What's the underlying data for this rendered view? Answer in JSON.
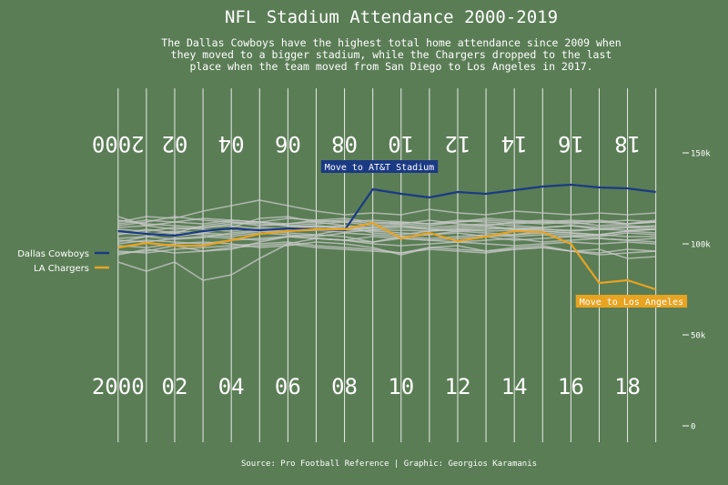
{
  "title": "NFL Stadium Attendance 2000-2019",
  "subtitle": "The Dallas Cowboys have the highest total home attendance since 2009 when they moved to a bigger stadium, while the Chargers dropped to the last place when the team moved from San Diego to Los Angeles in 2017.",
  "caption": "Source: Pro Football Reference | Graphic: Georgios Karamanis",
  "colors": {
    "background": "#5a7d55",
    "cowboys": "#1b3a84",
    "chargers": "#e8a321",
    "other_teams": "#c9c9c9",
    "yard_lines": "#ffffff"
  },
  "chart_data": {
    "type": "line",
    "x": [
      2000,
      2001,
      2002,
      2003,
      2004,
      2005,
      2006,
      2007,
      2008,
      2009,
      2010,
      2011,
      2012,
      2013,
      2014,
      2015,
      2016,
      2017,
      2018,
      2019
    ],
    "xlim": [
      1999.3,
      2019.3
    ],
    "ylim": [
      0,
      150000
    ],
    "yticks": [
      {
        "value": 0,
        "label": "0"
      },
      {
        "value": 50000,
        "label": "50k"
      },
      {
        "value": 100000,
        "label": "100k"
      },
      {
        "value": 150000,
        "label": "150k"
      }
    ],
    "field_numbers": [
      {
        "year": 2000,
        "label": "2000"
      },
      {
        "year": 2002,
        "label": "02"
      },
      {
        "year": 2004,
        "label": "04"
      },
      {
        "year": 2006,
        "label": "06"
      },
      {
        "year": 2008,
        "label": "08"
      },
      {
        "year": 2010,
        "label": "10"
      },
      {
        "year": 2012,
        "label": "12"
      },
      {
        "year": 2014,
        "label": "14"
      },
      {
        "year": 2016,
        "label": "16"
      },
      {
        "year": 2018,
        "label": "18"
      }
    ],
    "series": [
      {
        "name": "Dallas Cowboys",
        "role": "highlight",
        "color": "#1b3a84",
        "values": [
          107000,
          105500,
          104500,
          107000,
          108500,
          107500,
          108500,
          108000,
          107500,
          130000,
          127500,
          125500,
          128500,
          127500,
          129500,
          131500,
          132500,
          131000,
          130500,
          128500
        ]
      },
      {
        "name": "LA Chargers",
        "role": "highlight",
        "color": "#e8a321",
        "values": [
          98000,
          100500,
          99000,
          99000,
          102000,
          105500,
          107000,
          108000,
          108000,
          111500,
          103000,
          106000,
          101500,
          104000,
          107000,
          106500,
          100000,
          78500,
          80000,
          75000
        ]
      },
      {
        "role": "background",
        "values": [
          101000,
          104000,
          102500,
          103500,
          106000,
          107500,
          107000,
          107500,
          106500,
          107500,
          107500,
          107000,
          108000,
          107000,
          107500,
          108000,
          107500,
          108000,
          107500,
          108000
        ]
      },
      {
        "role": "background",
        "values": [
          112000,
          115000,
          114000,
          118000,
          121000,
          124000,
          121000,
          118000,
          116000,
          117000,
          116000,
          119000,
          117000,
          116000,
          118000,
          117000,
          116000,
          117000,
          116000,
          117000
        ]
      },
      {
        "role": "background",
        "values": [
          95000,
          96000,
          99000,
          96000,
          97000,
          101000,
          104000,
          105000,
          104000,
          101000,
          104000,
          103000,
          104000,
          105000,
          104000,
          105000,
          104000,
          105000,
          104000,
          104000
        ]
      },
      {
        "role": "background",
        "values": [
          115000,
          110000,
          112000,
          114000,
          113000,
          112000,
          114000,
          113000,
          112000,
          113000,
          112000,
          111000,
          112000,
          113000,
          112000,
          111000,
          112000,
          113000,
          111000,
          112000
        ]
      },
      {
        "role": "background",
        "values": [
          90000,
          85000,
          90000,
          80000,
          83000,
          92000,
          100000,
          103000,
          102000,
          100000,
          99000,
          100000,
          101000,
          100000,
          99000,
          100000,
          101000,
          100000,
          101000,
          100000
        ]
      },
      {
        "role": "background",
        "values": [
          105000,
          108000,
          106000,
          110000,
          112000,
          111000,
          110000,
          109000,
          110000,
          109000,
          110000,
          109000,
          110000,
          111000,
          110000,
          109000,
          110000,
          109000,
          110000,
          109000
        ]
      },
      {
        "role": "background",
        "values": [
          108000,
          107000,
          109000,
          108000,
          107000,
          109000,
          108000,
          110000,
          109000,
          108000,
          109000,
          108000,
          107000,
          108000,
          109000,
          108000,
          107000,
          108000,
          109000,
          108000
        ]
      },
      {
        "role": "background",
        "values": [
          100000,
          102000,
          101000,
          100000,
          102000,
          103000,
          104000,
          103000,
          102000,
          101000,
          103000,
          102000,
          101000,
          102000,
          103000,
          101000,
          102000,
          103000,
          102000,
          101000
        ]
      },
      {
        "role": "background",
        "values": [
          110000,
          112000,
          115000,
          113000,
          112000,
          110000,
          111000,
          113000,
          114000,
          112000,
          111000,
          110000,
          112000,
          114000,
          113000,
          112000,
          111000,
          112000,
          113000,
          112000
        ]
      },
      {
        "role": "background",
        "values": [
          96000,
          95000,
          97000,
          98000,
          99000,
          100000,
          101000,
          99000,
          98000,
          97000,
          95000,
          98000,
          99000,
          96000,
          97000,
          98000,
          96000,
          94000,
          95000,
          96000
        ]
      },
      {
        "role": "background",
        "values": [
          113000,
          111000,
          110000,
          109000,
          111000,
          112000,
          110000,
          111000,
          112000,
          110000,
          111000,
          113000,
          111000,
          110000,
          112000,
          113000,
          112000,
          110000,
          111000,
          113000
        ]
      },
      {
        "role": "background",
        "values": [
          103000,
          104000,
          106000,
          105000,
          104000,
          106000,
          105000,
          104000,
          106000,
          105000,
          104000,
          105000,
          106000,
          104000,
          105000,
          106000,
          105000,
          104000,
          106000,
          105000
        ]
      },
      {
        "role": "background",
        "values": [
          107000,
          106000,
          104000,
          106000,
          109000,
          114000,
          115000,
          112000,
          110000,
          106000,
          105000,
          107000,
          108000,
          109000,
          108000,
          107000,
          106000,
          105000,
          107000,
          108000
        ]
      },
      {
        "role": "background",
        "values": [
          99000,
          98000,
          100000,
          101000,
          100000,
          98000,
          99000,
          101000,
          100000,
          98000,
          94000,
          98000,
          97000,
          96000,
          98000,
          99000,
          96000,
          97000,
          92000,
          93000
        ]
      },
      {
        "role": "background",
        "values": [
          106000,
          105000,
          107000,
          106000,
          105000,
          107000,
          106000,
          105000,
          108000,
          107000,
          106000,
          105000,
          107000,
          106000,
          105000,
          107000,
          106000,
          105000,
          107000,
          106000
        ]
      },
      {
        "role": "background",
        "values": [
          111000,
          113000,
          112000,
          111000,
          113000,
          112000,
          111000,
          112000,
          113000,
          111000,
          112000,
          111000,
          113000,
          112000,
          111000,
          112000,
          113000,
          112000,
          111000,
          112000
        ]
      },
      {
        "role": "background",
        "values": [
          102000,
          101000,
          103000,
          104000,
          103000,
          102000,
          104000,
          103000,
          102000,
          104000,
          103000,
          102000,
          103000,
          104000,
          102000,
          103000,
          104000,
          103000,
          102000,
          103000
        ]
      },
      {
        "role": "background",
        "values": [
          94000,
          97000,
          95000,
          96000,
          98000,
          99000,
          100000,
          98000,
          97000,
          96000,
          95000,
          97000,
          96000,
          95000,
          97000,
          98000,
          96000,
          95000,
          97000,
          96000
        ]
      },
      {
        "role": "background",
        "values": [
          109000,
          110000,
          108000,
          109000,
          110000,
          108000,
          109000,
          110000,
          108000,
          109000,
          110000,
          108000,
          109000,
          110000,
          108000,
          109000,
          110000,
          108000,
          109000,
          110000
        ]
      }
    ],
    "annotations": [
      {
        "text": "Move to AT&T Stadium",
        "series": "Dallas Cowboys",
        "bg": "#1b3a84",
        "color": "#ffffff",
        "year": 2007.3,
        "value": 141000
      },
      {
        "text": "Move to Los Angeles",
        "series": "LA Chargers",
        "bg": "#e8a321",
        "color": "#ffffff",
        "year": 2016.3,
        "value": 67000
      }
    ]
  }
}
